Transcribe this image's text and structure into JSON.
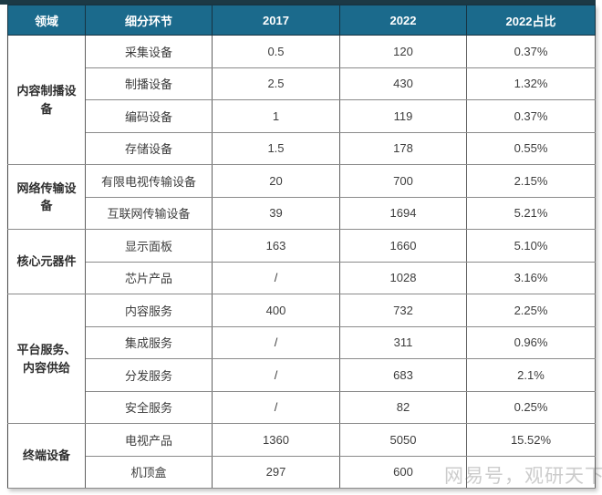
{
  "colors": {
    "header_bg": "#1b6a8c",
    "top_bar": "#1c3945",
    "header_text": "#ffffff",
    "body_text": "#3d3d3d"
  },
  "watermark": "网易号，观研天下",
  "chart_data": {
    "type": "table",
    "columns": [
      "领域",
      "细分环节",
      "2017",
      "2022",
      "2022占比"
    ],
    "groups": [
      {
        "name": "内容制播设备",
        "rows": [
          {
            "segment": "采集设备",
            "y2017": "0.5",
            "y2022": "120",
            "share": "0.37%"
          },
          {
            "segment": "制播设备",
            "y2017": "2.5",
            "y2022": "430",
            "share": "1.32%"
          },
          {
            "segment": "编码设备",
            "y2017": "1",
            "y2022": "119",
            "share": "0.37%"
          },
          {
            "segment": "存储设备",
            "y2017": "1.5",
            "y2022": "178",
            "share": "0.55%"
          }
        ]
      },
      {
        "name": "网络传输设备",
        "rows": [
          {
            "segment": "有限电视传输设备",
            "y2017": "20",
            "y2022": "700",
            "share": "2.15%"
          },
          {
            "segment": "互联网传输设备",
            "y2017": "39",
            "y2022": "1694",
            "share": "5.21%"
          }
        ]
      },
      {
        "name": "核心元器件",
        "rows": [
          {
            "segment": "显示面板",
            "y2017": "163",
            "y2022": "1660",
            "share": "5.10%"
          },
          {
            "segment": "芯片产品",
            "y2017": "/",
            "y2022": "1028",
            "share": "3.16%"
          }
        ]
      },
      {
        "name": "平台服务、内容供给",
        "rows": [
          {
            "segment": "内容服务",
            "y2017": "400",
            "y2022": "732",
            "share": "2.25%"
          },
          {
            "segment": "集成服务",
            "y2017": "/",
            "y2022": "311",
            "share": "0.96%"
          },
          {
            "segment": "分发服务",
            "y2017": "/",
            "y2022": "683",
            "share": "2.1%"
          },
          {
            "segment": "安全服务",
            "y2017": "/",
            "y2022": "82",
            "share": "0.25%"
          }
        ]
      },
      {
        "name": "终端设备",
        "rows": [
          {
            "segment": "电视产品",
            "y2017": "1360",
            "y2022": "5050",
            "share": "15.52%"
          },
          {
            "segment": "机顶盒",
            "y2017": "297",
            "y2022": "600",
            "share": ""
          }
        ]
      }
    ]
  }
}
